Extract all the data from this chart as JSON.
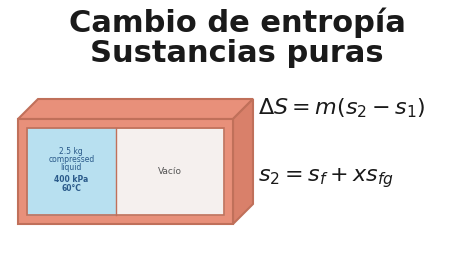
{
  "title_line1": "Cambio de entropía",
  "title_line2": "Sustancias puras",
  "title_color": "#1a1a1a",
  "title_fontsize": 22,
  "bg_color": "#ffffff",
  "box_outer_color": "#e8907a",
  "box_inner_left_color": "#b8e0f0",
  "box_inner_right_color": "#f5f0ee",
  "box_edge_color": "#c0705a",
  "left_text_line1": "2.5 kg",
  "left_text_line2": "compressed",
  "left_text_line3": "liquid",
  "left_text_line4": "400 kPa",
  "left_text_line5": "60°C",
  "right_text": "Vacío",
  "formula1": "$\\Delta S = m(s_2 - s_1)$",
  "formula2": "$s_2 = s_f + xs_{fg}$",
  "formula_color": "#1a1a1a",
  "formula_fontsize": 16,
  "inner_text_color": "#2a5a8a",
  "vacuo_text_color": "#555555",
  "right_side_dark": "#d9806a",
  "inner_left_edge": "#90c8e0",
  "inner_right_edge": "#d0b0a0"
}
